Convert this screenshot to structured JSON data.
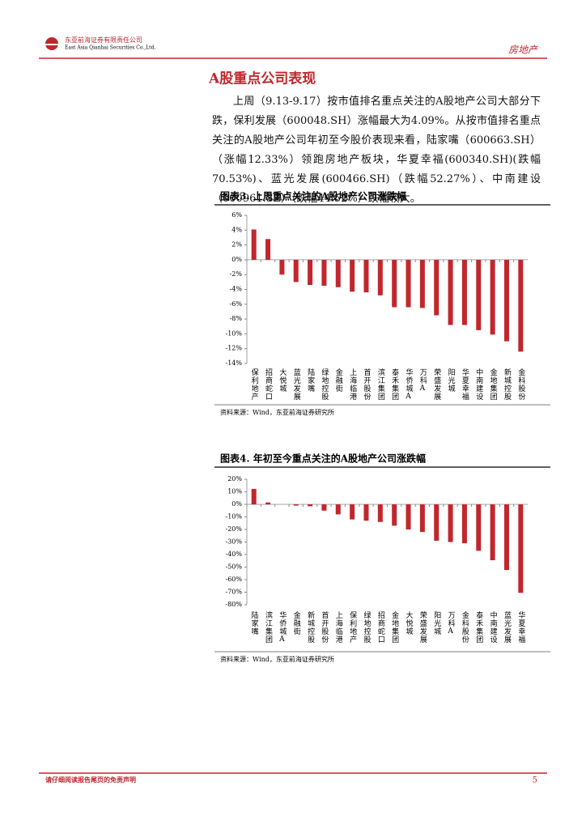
{
  "header": {
    "company": "东亚前海证券有限责任公司",
    "company_en": "East Asia Qianhai Securities Co.,Ltd.",
    "sector": "房地产"
  },
  "section_title": "A股重点公司表现",
  "paragraph": "上周（9.13-9.17）按市值排名重点关注的A股地产公司大部分下跌，保利发展（600048.SH）涨幅最大为4.09%。从按市值排名重点关注的A股地产公司年初至今股价表现来看，陆家嘴（600663.SH）（涨幅12.33%）领跑房地产板块，华夏幸福(600340.SH)(跌幅70.53%)、蓝光发展(600466.SH)（跌幅52.27%）、中南建设（000961.SZ）（跌幅44.52%）跌幅较大。",
  "chart_data": [
    {
      "type": "bar",
      "title": "图表3.  上周重点关注的A股地产公司涨跌幅",
      "source": "资料来源：Wind，东亚前海证券研究所",
      "color": "#c0272d",
      "categories": [
        "保利地产",
        "招商蛇口",
        "大悦城",
        "蓝光发展",
        "陆家嘴",
        "绿地控股",
        "金融街",
        "上海临港",
        "首开股份",
        "滨江集团",
        "泰禾集团",
        "华侨城A",
        "万科A",
        "荣盛发展",
        "阳光城",
        "华夏幸福",
        "中南建设",
        "金地集团",
        "新城控股",
        "金科股份"
      ],
      "values": [
        4.09,
        2.8,
        -2.0,
        -3.0,
        -3.4,
        -3.5,
        -3.7,
        -4.3,
        -4.4,
        -4.8,
        -6.4,
        -6.4,
        -6.5,
        -7.5,
        -8.8,
        -8.8,
        -9.5,
        -10.1,
        -11.0,
        -12.4
      ],
      "ylim": [
        -14,
        6
      ],
      "yticks": [
        {
          "value": -14,
          "label": "-14%"
        },
        {
          "value": -12,
          "label": "-12%"
        },
        {
          "value": -10,
          "label": "-10%"
        },
        {
          "value": -8,
          "label": "-8%"
        },
        {
          "value": -6,
          "label": "-6%"
        },
        {
          "value": -4,
          "label": "-4%"
        },
        {
          "value": -2,
          "label": "-2%"
        },
        {
          "value": 0,
          "label": "0%"
        },
        {
          "value": 2,
          "label": "2%"
        },
        {
          "value": 4,
          "label": "4%"
        },
        {
          "value": 6,
          "label": "6%"
        }
      ],
      "grid": false
    },
    {
      "type": "bar",
      "title": "图表4.  年初至今重点关注的A股地产公司涨跌幅",
      "source": "资料来源：Wind，东亚前海证券研究所",
      "color": "#c0272d",
      "categories": [
        "陆家嘴",
        "滨江集团",
        "华侨城A",
        "金融街",
        "新城控股",
        "首开股份",
        "上海临港",
        "保利地产",
        "绿地控股",
        "招商蛇口",
        "金地集团",
        "大悦城",
        "荣盛发展",
        "阳光城",
        "万科A",
        "金科股份",
        "泰禾集团",
        "中南建设",
        "蓝光发展",
        "华夏幸福"
      ],
      "values": [
        12.33,
        1.5,
        0,
        -1,
        -1.5,
        -5,
        -8,
        -12,
        -13,
        -14,
        -17,
        -20,
        -22,
        -29,
        -30,
        -31,
        -37,
        -44.52,
        -52.27,
        -70.53
      ],
      "ylim": [
        -80,
        20
      ],
      "yticks": [
        {
          "value": -80,
          "label": "-80%"
        },
        {
          "value": -70,
          "label": "-70%"
        },
        {
          "value": -60,
          "label": "-60%"
        },
        {
          "value": -50,
          "label": "-50%"
        },
        {
          "value": -40,
          "label": "-40%"
        },
        {
          "value": -30,
          "label": "-30%"
        },
        {
          "value": -20,
          "label": "-20%"
        },
        {
          "value": -10,
          "label": "-10%"
        },
        {
          "value": 0,
          "label": "0%"
        },
        {
          "value": 10,
          "label": "10%"
        },
        {
          "value": 20,
          "label": "20%"
        }
      ],
      "grid": false
    }
  ],
  "footer": {
    "disclaimer": "请仔细阅读报告尾页的免责声明",
    "page": "5"
  }
}
